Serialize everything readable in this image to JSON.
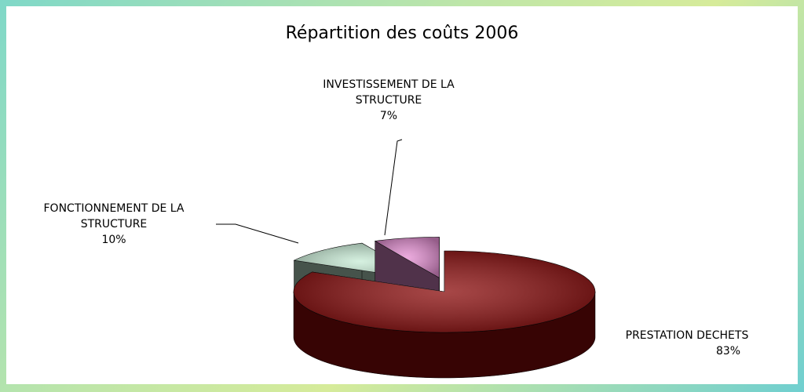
{
  "chart_data": {
    "type": "pie",
    "title": "Répartition des coûts 2006",
    "categories": [
      "PRESTATION DECHETS",
      "FONCTIONNEMENT DE LA STRUCTURE",
      "INVESTISSEMENT DE LA STRUCTURE"
    ],
    "values": [
      83,
      10,
      7
    ],
    "value_labels": [
      "83%",
      "10%",
      "7%"
    ],
    "colors": [
      "#8a0a0a",
      "#c8ecd6",
      "#e58fd3"
    ]
  }
}
